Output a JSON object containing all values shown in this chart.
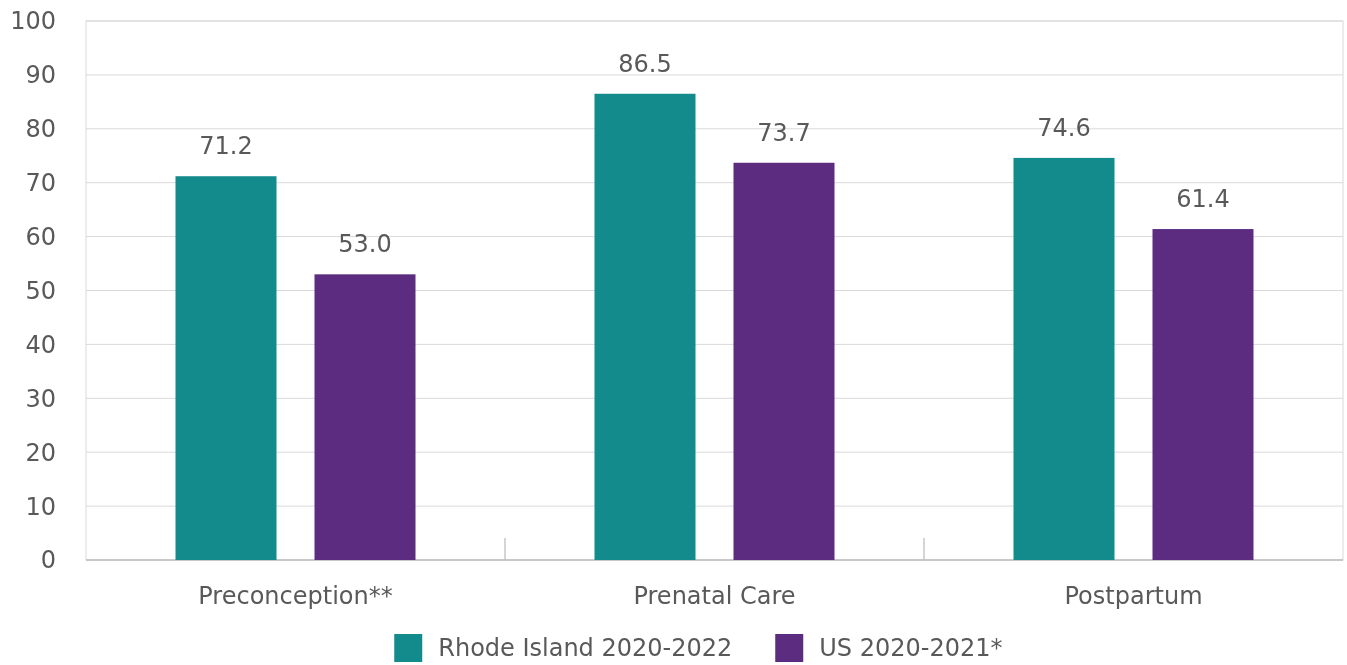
{
  "chart_data": {
    "type": "bar",
    "categories": [
      "Preconception**",
      "Prenatal Care",
      "Postpartum"
    ],
    "series": [
      {
        "name": "Rhode Island 2020-2022",
        "color": "#138a8c",
        "values": [
          71.2,
          86.5,
          74.6
        ]
      },
      {
        "name": "US 2020-2021*",
        "color": "#5b2c80",
        "values": [
          53.0,
          73.7,
          61.4
        ]
      }
    ],
    "value_labels": [
      [
        "71.2",
        "86.5",
        "74.6"
      ],
      [
        "53.0",
        "73.7",
        "61.4"
      ]
    ],
    "ylim": [
      0,
      100
    ],
    "yticks": [
      0,
      10,
      20,
      30,
      40,
      50,
      60,
      70,
      80,
      90,
      100
    ],
    "grid": "y",
    "legend": "bottom"
  }
}
